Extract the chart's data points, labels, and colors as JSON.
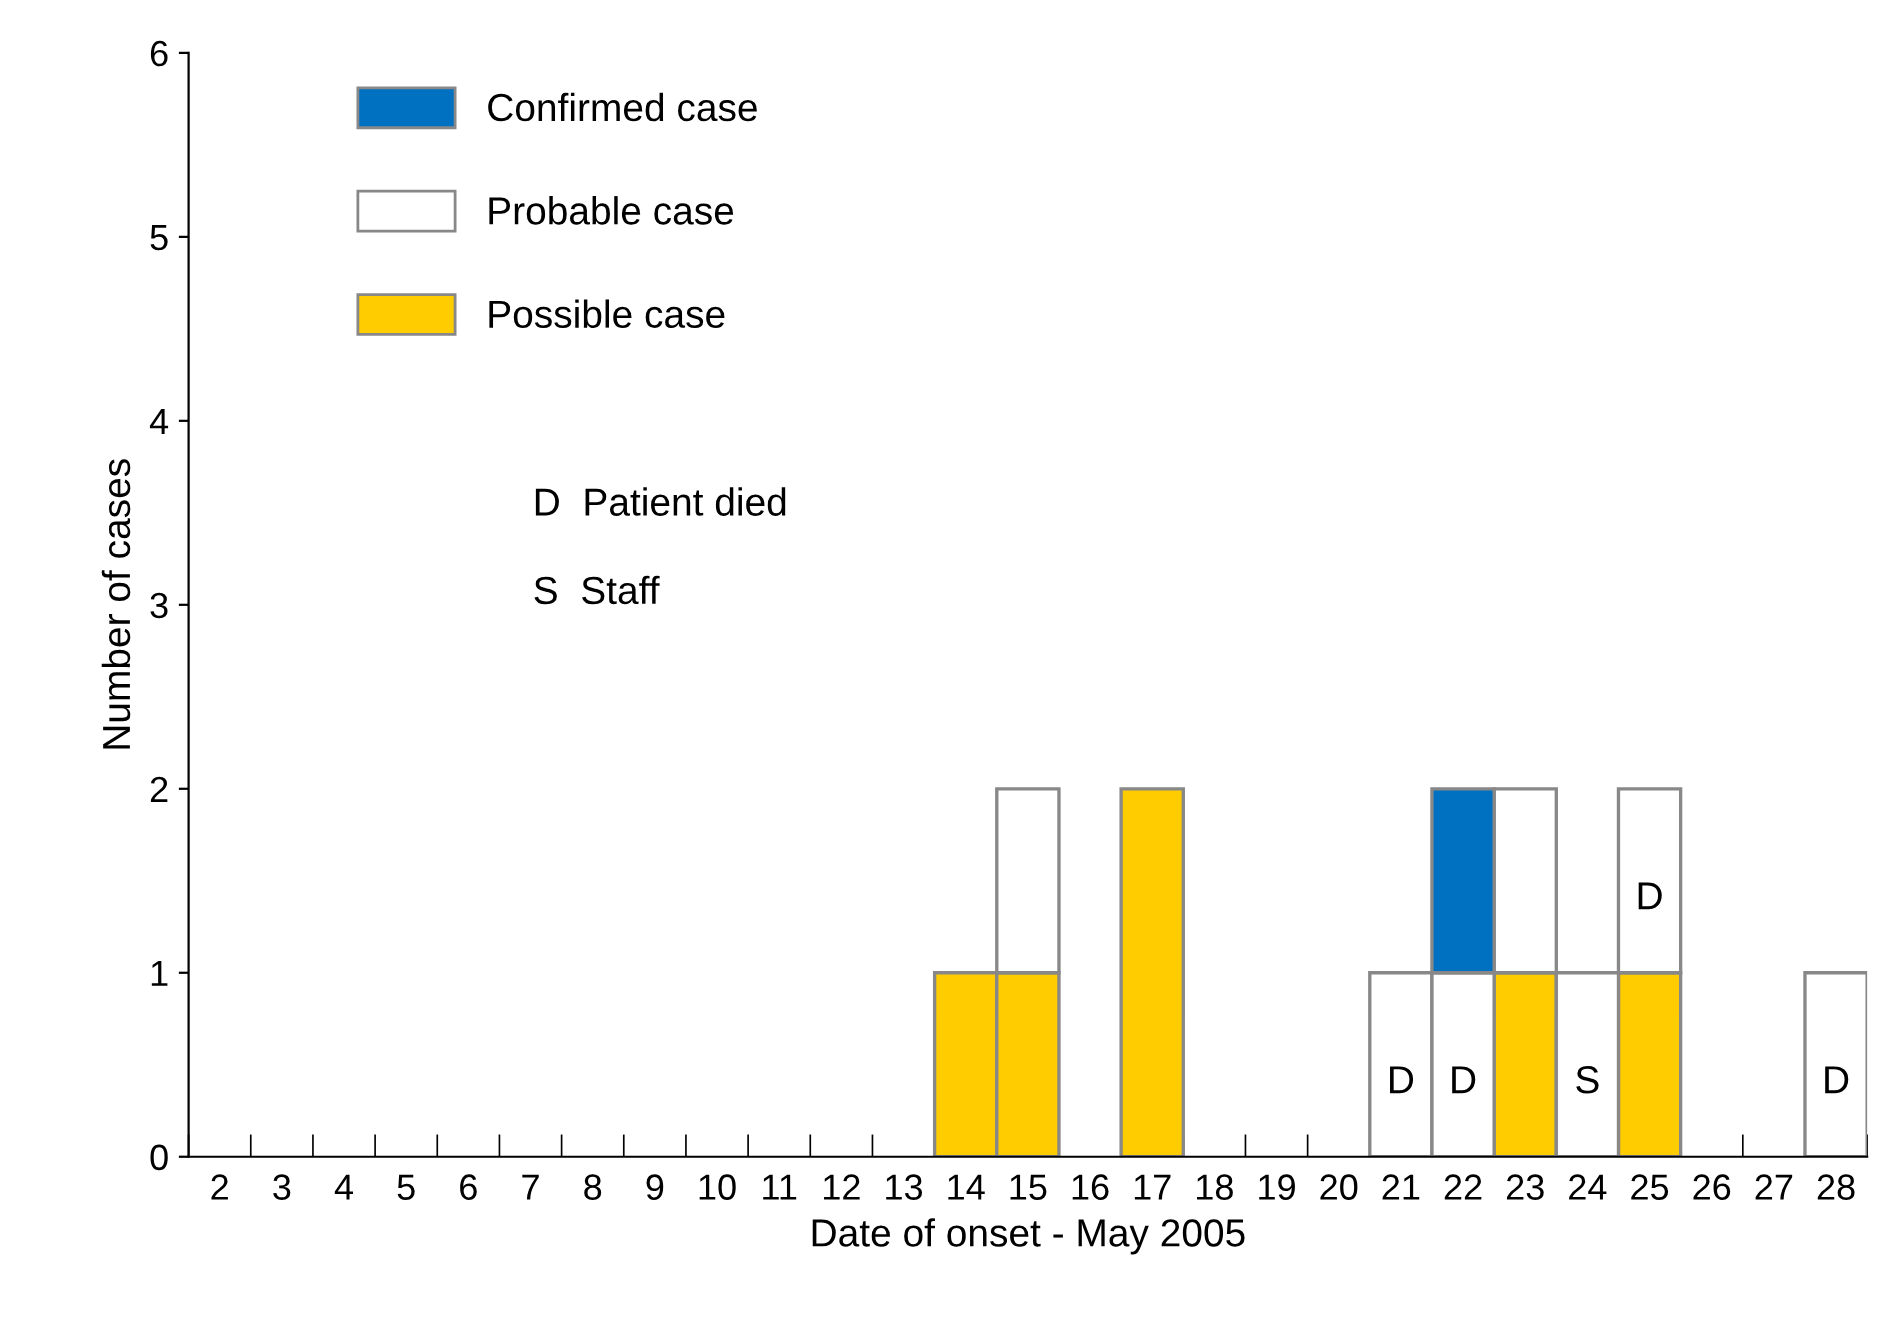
{
  "chart_data": {
    "type": "bar",
    "stacked": true,
    "xlabel": "Date of onset - May 2005",
    "ylabel": "Number of cases",
    "categories": [
      "2",
      "3",
      "4",
      "5",
      "6",
      "7",
      "8",
      "9",
      "10",
      "11",
      "12",
      "13",
      "14",
      "15",
      "16",
      "17",
      "18",
      "19",
      "20",
      "21",
      "22",
      "23",
      "24",
      "25",
      "26",
      "27",
      "28"
    ],
    "series": [
      {
        "name": "Possible case",
        "color": "#ffcc00",
        "values": [
          0,
          0,
          0,
          0,
          0,
          0,
          0,
          0,
          0,
          0,
          0,
          0,
          1,
          1,
          0,
          2,
          0,
          0,
          0,
          0,
          0,
          1,
          0,
          1,
          0,
          0,
          0
        ]
      },
      {
        "name": "Probable case",
        "color": "#ffffff",
        "values": [
          0,
          0,
          0,
          0,
          0,
          0,
          0,
          0,
          0,
          0,
          0,
          0,
          0,
          1,
          0,
          0,
          0,
          0,
          0,
          1,
          1,
          1,
          1,
          1,
          0,
          0,
          1
        ],
        "value_labels": [
          null,
          null,
          null,
          null,
          null,
          null,
          null,
          null,
          null,
          null,
          null,
          null,
          null,
          null,
          null,
          null,
          null,
          null,
          null,
          "D",
          "D",
          null,
          "S",
          "D",
          null,
          null,
          "D"
        ]
      },
      {
        "name": "Confirmed case",
        "color": "#0070c0",
        "values": [
          0,
          0,
          0,
          0,
          0,
          0,
          0,
          0,
          0,
          0,
          0,
          0,
          0,
          0,
          0,
          0,
          0,
          0,
          0,
          0,
          1,
          0,
          0,
          0,
          0,
          0,
          0
        ]
      }
    ],
    "ylim": [
      0,
      6
    ],
    "yticks": [
      0,
      1,
      2,
      3,
      4,
      5,
      6
    ],
    "grid": false,
    "legend": "top left",
    "annotations": [
      "D  Patient died",
      "S  Staff"
    ]
  }
}
